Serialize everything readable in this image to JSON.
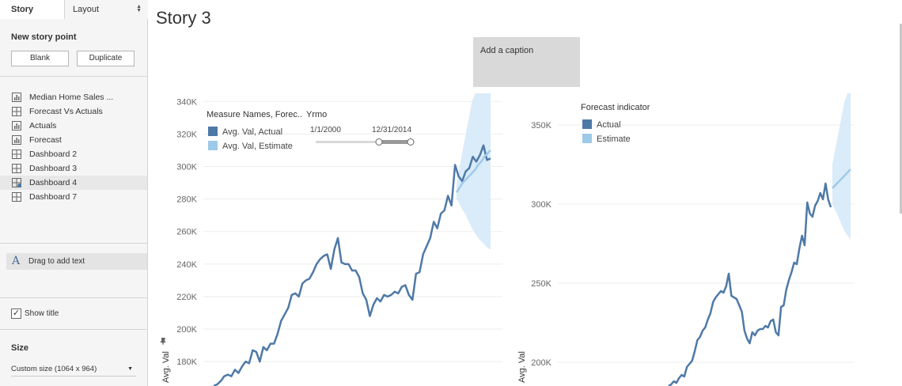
{
  "sidebar": {
    "tabs": {
      "story": "Story",
      "layout": "Layout"
    },
    "new_story_point": "New story point",
    "buttons": {
      "blank": "Blank",
      "duplicate": "Duplicate"
    },
    "sheets": [
      {
        "label": "Median Home Sales ...",
        "icon": "bar-chart-icon"
      },
      {
        "label": "Forecast Vs Actuals",
        "icon": "dashboard-icon"
      },
      {
        "label": "Actuals",
        "icon": "bar-chart-icon"
      },
      {
        "label": "Forecast",
        "icon": "bar-chart-icon"
      },
      {
        "label": "Dashboard 2",
        "icon": "dashboard-icon"
      },
      {
        "label": "Dashboard 3",
        "icon": "dashboard-icon"
      },
      {
        "label": "Dashboard 4",
        "icon": "dashboard-icon"
      },
      {
        "label": "Dashboard 7",
        "icon": "dashboard-icon"
      }
    ],
    "drag_text": "Drag to add text",
    "show_title": "Show title",
    "show_title_checked": true,
    "size_label": "Size",
    "size_value": "Custom size (1064 x 964)"
  },
  "story": {
    "title": "Story 3",
    "caption": "Add a caption"
  },
  "chart_data": [
    {
      "type": "line",
      "ylabel": "Avg. Val",
      "ylim": [
        165000,
        345000
      ],
      "yticks": [
        "340K",
        "320K",
        "300K",
        "280K",
        "260K",
        "240K",
        "220K",
        "200K",
        "180K"
      ],
      "grid": true,
      "legend": {
        "title": "Measure Names, Forec..",
        "entries": [
          {
            "name": "Avg. Val, Actual",
            "color": "#4e79a7"
          },
          {
            "name": "Avg. Val, Estimate",
            "color": "#9ecae9"
          }
        ]
      },
      "filter": {
        "title": "Yrmo",
        "start": "1/1/2000",
        "end": "12/31/2014"
      },
      "series": [
        {
          "name": "Avg. Val, Actual",
          "values": [
            165000,
            166000,
            168000,
            171000,
            172000,
            171000,
            175000,
            173000,
            177000,
            180000,
            179000,
            187000,
            186000,
            180000,
            189000,
            187000,
            191000,
            191000,
            197000,
            205000,
            209000,
            213000,
            221000,
            222000,
            220000,
            228000,
            230000,
            231000,
            235000,
            240000,
            243000,
            245000,
            246000,
            237000,
            249000,
            256000,
            241000,
            240000,
            240000,
            236000,
            236000,
            232000,
            222000,
            218000,
            208000,
            215000,
            219000,
            217000,
            221000,
            220000,
            221000,
            223000,
            222000,
            226000,
            227000,
            221000,
            218000,
            234000,
            235000,
            246000,
            251000,
            256000,
            266000,
            262000,
            271000,
            273000,
            282000,
            276000,
            301000,
            294000,
            291000,
            297000,
            299000,
            306000,
            303000,
            307000,
            313000,
            304000,
            305000
          ]
        },
        {
          "name": "Avg. Val, Estimate",
          "values": [
            284000,
            287000,
            290000,
            292000,
            294000,
            296000,
            298000,
            301000,
            303000,
            306000,
            308000,
            310000
          ],
          "upper": [
            290000,
            300000,
            310000,
            320000,
            330000,
            340000,
            345000,
            345000,
            345000,
            345000,
            345000,
            345000
          ],
          "lower": [
            280000,
            277000,
            273000,
            270000,
            266000,
            262000,
            259000,
            256000,
            254000,
            252000,
            250000,
            249000
          ]
        }
      ]
    },
    {
      "type": "line",
      "ylabel": "Avg. Val",
      "ylim": [
        185000,
        370000
      ],
      "yticks": [
        "350K",
        "300K",
        "250K",
        "200K"
      ],
      "grid": true,
      "legend": {
        "title": "Forecast indicator",
        "entries": [
          {
            "name": "Actual",
            "color": "#4e79a7"
          },
          {
            "name": "Estimate",
            "color": "#9ecae9"
          }
        ]
      },
      "series": [
        {
          "name": "Actual",
          "values": [
            185000,
            186000,
            188000,
            187000,
            190000,
            192000,
            191000,
            197000,
            199000,
            201000,
            207000,
            214000,
            216000,
            220000,
            222000,
            227000,
            231000,
            238000,
            241000,
            243000,
            245000,
            244000,
            248000,
            256000,
            242000,
            241000,
            240000,
            236000,
            232000,
            220000,
            215000,
            212000,
            219000,
            217000,
            220000,
            221000,
            221000,
            223000,
            222000,
            226000,
            227000,
            219000,
            217000,
            235000,
            236000,
            246000,
            252000,
            257000,
            263000,
            262000,
            272000,
            280000,
            274000,
            301000,
            294000,
            292000,
            299000,
            302000,
            307000,
            303000,
            313000,
            303000,
            298000
          ]
        },
        {
          "name": "Estimate",
          "values": [
            310000,
            312000,
            314000,
            316000,
            318000,
            320000,
            322000
          ],
          "upper": [
            325000,
            335000,
            345000,
            355000,
            365000,
            370000,
            370000
          ],
          "lower": [
            300000,
            296000,
            292000,
            287000,
            283000,
            280000,
            278000
          ]
        }
      ]
    }
  ],
  "colors": {
    "actual": "#4e79a7",
    "estimate": "#9ecae9",
    "band": "#d6e9f8",
    "sidebar_bg": "#f5f5f5",
    "caption_bg": "#d9d9d9"
  }
}
